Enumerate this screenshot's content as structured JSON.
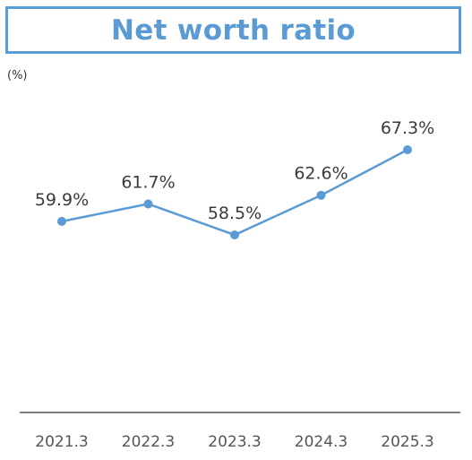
{
  "chart_data": {
    "type": "line",
    "title": "Net worth ratio",
    "unit": "(%)",
    "categories": [
      "2021.3",
      "2022.3",
      "2023.3",
      "2024.3",
      "2025.3"
    ],
    "series": [
      {
        "values": [
          59.9,
          61.7,
          58.5,
          62.6,
          67.3
        ],
        "labels": [
          "59.9%",
          "61.7%",
          "58.5%",
          "62.6%",
          "67.3%"
        ]
      }
    ],
    "ylim": [
      40,
      70
    ],
    "grid": false,
    "legend": "none",
    "line_color": "#5b9bd5",
    "axis_color": "#7f7f7f"
  }
}
